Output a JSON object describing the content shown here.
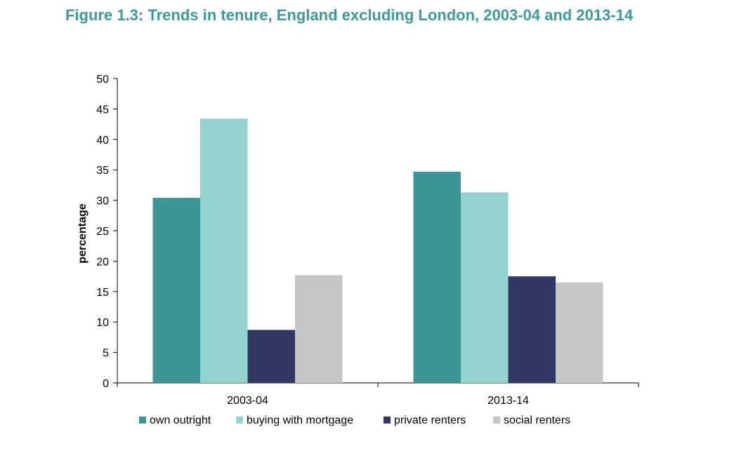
{
  "chart_data": {
    "type": "bar",
    "title": "Figure 1.3: Trends in tenure, England excluding London, 2003-04 and 2013-14",
    "xlabel": "",
    "ylabel": "percentage",
    "ylim": [
      0,
      50
    ],
    "yticks": [
      0,
      5,
      10,
      15,
      20,
      25,
      30,
      35,
      40,
      45,
      50
    ],
    "categories": [
      "2003-04",
      "2013-14"
    ],
    "series": [
      {
        "name": "own outright",
        "color": "#3d9696",
        "values": [
          30.4,
          34.7
        ]
      },
      {
        "name": "buying with mortgage",
        "color": "#94d2d0",
        "values": [
          43.4,
          31.3
        ]
      },
      {
        "name": "private renters",
        "color": "#303763",
        "values": [
          8.7,
          17.5
        ]
      },
      {
        "name": "social renters",
        "color": "#c6c6c6",
        "values": [
          17.7,
          16.5
        ]
      }
    ],
    "grid": false,
    "legend_position": "bottom"
  }
}
